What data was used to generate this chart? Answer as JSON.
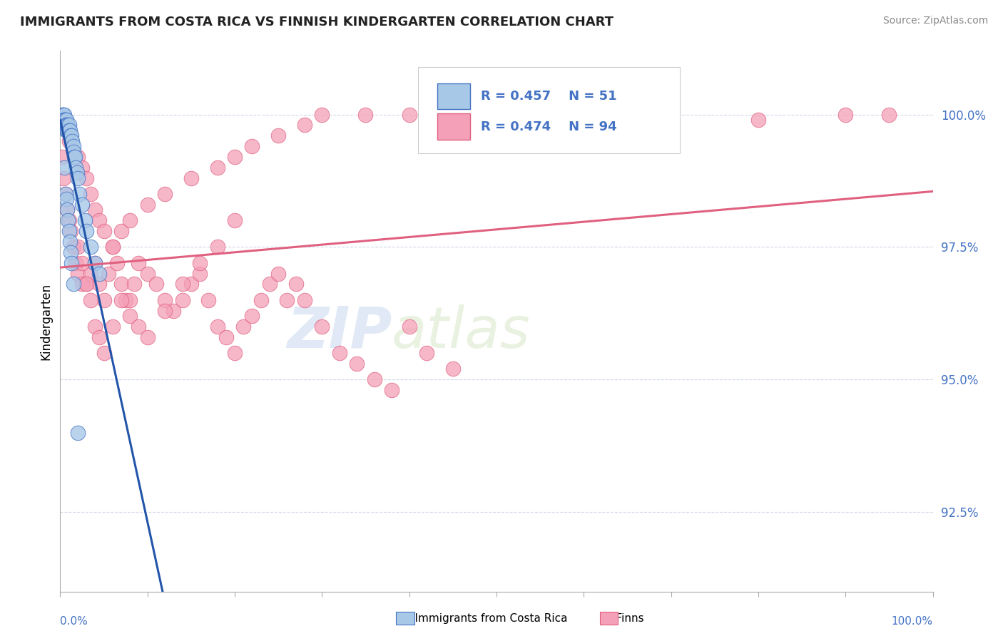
{
  "title": "IMMIGRANTS FROM COSTA RICA VS FINNISH KINDERGARTEN CORRELATION CHART",
  "source": "Source: ZipAtlas.com",
  "ylabel": "Kindergarten",
  "xmin": 0.0,
  "xmax": 1.0,
  "ymin": 0.91,
  "ymax": 1.012,
  "ytick_labels": [
    "92.5%",
    "95.0%",
    "97.5%",
    "100.0%"
  ],
  "ytick_values": [
    0.925,
    0.95,
    0.975,
    1.0
  ],
  "blue_color": "#a8c8e8",
  "pink_color": "#f4a0b8",
  "blue_edge": "#4472c4",
  "pink_edge": "#e06080",
  "trendline_blue": "#2255aa",
  "trendline_pink": "#e06080",
  "watermark_zip": "ZIP",
  "watermark_atlas": "atlas",
  "background_color": "#ffffff",
  "grid_color": "#d0d8e8",
  "blue_x": [
    0.002,
    0.003,
    0.003,
    0.004,
    0.004,
    0.004,
    0.005,
    0.005,
    0.005,
    0.005,
    0.006,
    0.006,
    0.006,
    0.007,
    0.007,
    0.007,
    0.008,
    0.008,
    0.009,
    0.009,
    0.01,
    0.01,
    0.011,
    0.012,
    0.013,
    0.014,
    0.015,
    0.015,
    0.016,
    0.017,
    0.018,
    0.019,
    0.02,
    0.022,
    0.025,
    0.028,
    0.03,
    0.035,
    0.04,
    0.045,
    0.005,
    0.006,
    0.007,
    0.008,
    0.009,
    0.01,
    0.011,
    0.012,
    0.013,
    0.015,
    0.02
  ],
  "blue_y": [
    1.0,
    1.0,
    0.999,
    1.0,
    0.999,
    0.998,
    1.0,
    0.999,
    0.999,
    0.998,
    0.999,
    0.998,
    0.998,
    0.999,
    0.998,
    0.997,
    0.998,
    0.997,
    0.998,
    0.997,
    0.998,
    0.997,
    0.997,
    0.996,
    0.996,
    0.995,
    0.994,
    0.993,
    0.992,
    0.992,
    0.99,
    0.989,
    0.988,
    0.985,
    0.983,
    0.98,
    0.978,
    0.975,
    0.972,
    0.97,
    0.99,
    0.985,
    0.984,
    0.982,
    0.98,
    0.978,
    0.976,
    0.974,
    0.972,
    0.968,
    0.94
  ],
  "pink_x": [
    0.002,
    0.004,
    0.006,
    0.008,
    0.01,
    0.012,
    0.015,
    0.018,
    0.02,
    0.025,
    0.03,
    0.035,
    0.04,
    0.045,
    0.05,
    0.055,
    0.06,
    0.065,
    0.07,
    0.075,
    0.08,
    0.085,
    0.09,
    0.1,
    0.11,
    0.12,
    0.13,
    0.14,
    0.15,
    0.16,
    0.17,
    0.18,
    0.19,
    0.2,
    0.21,
    0.22,
    0.23,
    0.24,
    0.25,
    0.26,
    0.27,
    0.28,
    0.3,
    0.32,
    0.34,
    0.36,
    0.38,
    0.4,
    0.42,
    0.45,
    0.01,
    0.015,
    0.02,
    0.025,
    0.03,
    0.035,
    0.04,
    0.045,
    0.05,
    0.06,
    0.07,
    0.08,
    0.1,
    0.12,
    0.15,
    0.18,
    0.2,
    0.22,
    0.25,
    0.28,
    0.3,
    0.35,
    0.4,
    0.02,
    0.025,
    0.03,
    0.035,
    0.04,
    0.045,
    0.05,
    0.06,
    0.07,
    0.08,
    0.09,
    0.1,
    0.12,
    0.14,
    0.16,
    0.18,
    0.2,
    0.7,
    0.8,
    0.9,
    0.95
  ],
  "pink_y": [
    0.992,
    0.988,
    0.985,
    0.982,
    0.98,
    0.978,
    0.975,
    0.972,
    0.97,
    0.968,
    0.968,
    0.97,
    0.972,
    0.968,
    0.965,
    0.97,
    0.975,
    0.972,
    0.968,
    0.965,
    0.965,
    0.968,
    0.972,
    0.97,
    0.968,
    0.965,
    0.963,
    0.965,
    0.968,
    0.97,
    0.965,
    0.96,
    0.958,
    0.955,
    0.96,
    0.962,
    0.965,
    0.968,
    0.97,
    0.965,
    0.968,
    0.965,
    0.96,
    0.955,
    0.953,
    0.95,
    0.948,
    0.96,
    0.955,
    0.952,
    0.995,
    0.993,
    0.992,
    0.99,
    0.988,
    0.985,
    0.982,
    0.98,
    0.978,
    0.975,
    0.978,
    0.98,
    0.983,
    0.985,
    0.988,
    0.99,
    0.992,
    0.994,
    0.996,
    0.998,
    1.0,
    1.0,
    1.0,
    0.975,
    0.972,
    0.968,
    0.965,
    0.96,
    0.958,
    0.955,
    0.96,
    0.965,
    0.962,
    0.96,
    0.958,
    0.963,
    0.968,
    0.972,
    0.975,
    0.98,
    0.998,
    0.999,
    1.0,
    1.0
  ]
}
